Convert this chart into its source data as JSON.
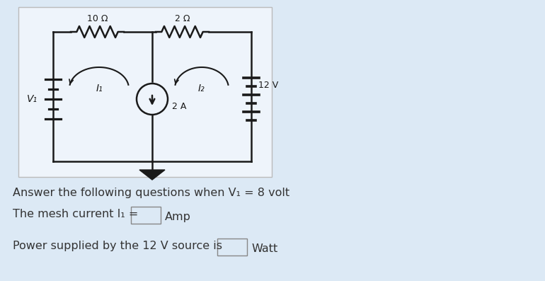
{
  "bg_color": "#dce9f5",
  "circuit_bg": "#eef4fb",
  "line_color": "#1a1a1a",
  "text_color": "#333333",
  "R1_label": "10 Ω",
  "R2_label": "2 Ω",
  "V1_label": "V₁",
  "V2_label": "12 V",
  "I1_label": "I₁",
  "I2_label": "I₂",
  "IS_label": "2 A",
  "title_question": "Answer the following questions when V₁ = 8 volt",
  "question1": "The mesh current I₁ =",
  "question1_unit": "Amp",
  "question2": "Power supplied by the 12 V source is",
  "question2_unit": "Watt",
  "fig_width": 7.7,
  "fig_height": 3.97,
  "dpi": 100
}
